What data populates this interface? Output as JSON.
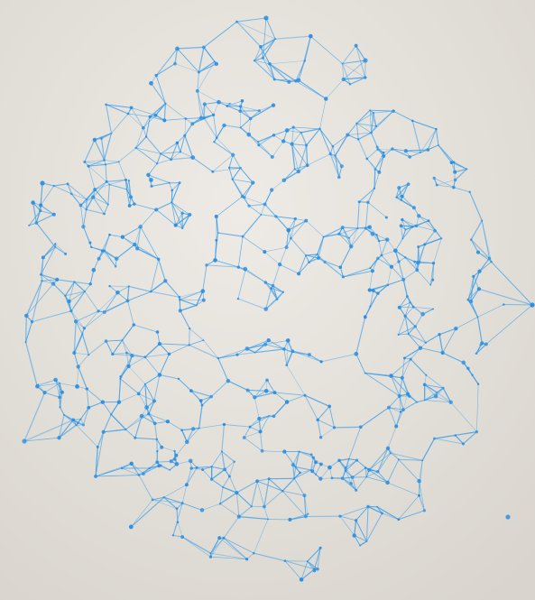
{
  "artwork": {
    "subject": "network-sphere",
    "colors": {
      "background_light": "#eeebe6",
      "background_shadow": "#d9d5ce",
      "line": "#4aa3e6",
      "node": "#2e8fe0"
    }
  }
}
